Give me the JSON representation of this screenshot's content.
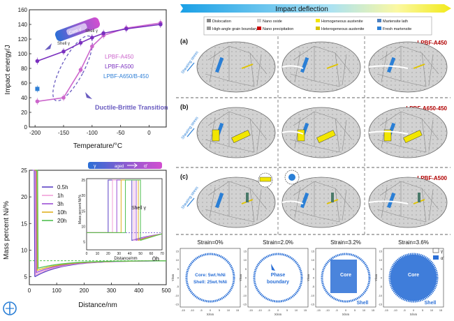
{
  "chart_data": [
    {
      "type": "line",
      "xlabel": "Temperature/°C",
      "ylabel": "Impact energy/J",
      "xlim": [
        -210,
        30
      ],
      "ylim": [
        0,
        160
      ],
      "xticks": [
        "-200",
        "-150",
        "-100",
        "-50",
        "0"
      ],
      "yticks": [
        "0",
        "20",
        "40",
        "60",
        "80",
        "100",
        "120",
        "140",
        "160"
      ],
      "series": [
        {
          "name": "LPBF-A450",
          "color": "#cc66cc",
          "x": [
            -196,
            -150,
            -120,
            -100,
            -80,
            -40,
            20
          ],
          "y": [
            35,
            40,
            78,
            110,
            125,
            135,
            142
          ]
        },
        {
          "name": "LPBF-A500",
          "color": "#7a2fbf",
          "x": [
            -196,
            -150,
            -120,
            -100,
            -80,
            -40,
            20
          ],
          "y": [
            90,
            103,
            115,
            122,
            128,
            134,
            140
          ]
        },
        {
          "name": "LPBF-A650/B-450",
          "color": "#2f7fd6",
          "x": [
            -196
          ],
          "y": [
            52
          ]
        }
      ],
      "annotations": [
        "Ductile-Brittle Transition",
        "Shell γ",
        "Shell γ",
        "Core γ'"
      ]
    },
    {
      "type": "line",
      "xlabel": "Distance/nm",
      "ylabel": "Mass percent Ni/%",
      "xlim": [
        0,
        500
      ],
      "ylim": [
        3.5,
        25
      ],
      "xticks": [
        "0",
        "100",
        "200",
        "300",
        "400",
        "500"
      ],
      "yticks": [
        "5",
        "10",
        "15",
        "20",
        "25"
      ],
      "series": [
        {
          "name": "0.5h",
          "color": "#5a3fc4"
        },
        {
          "name": "1h",
          "color": "#f2a0d8"
        },
        {
          "name": "3h",
          "color": "#9c4fd6"
        },
        {
          "name": "10h",
          "color": "#e0b020"
        },
        {
          "name": "20h",
          "color": "#50c050"
        }
      ],
      "annotations": [
        "0h"
      ],
      "inset": {
        "xlabel": "Distance/nm",
        "ylabel": "Mass percent Ni/%",
        "xticks": [
          "0",
          "10",
          "20",
          "30",
          "40",
          "50",
          "60",
          "70"
        ],
        "yticks": [
          "5",
          "10",
          "15",
          "20",
          "25"
        ],
        "annotation": "Shell γ"
      }
    },
    {
      "type": "scatter",
      "panels": [
        {
          "strain": "Strain=0%",
          "label1": "Core: 5wt.%Ni",
          "label2": "Shell: 25wt.%Ni"
        },
        {
          "strain": "Strain=2.0%",
          "label1": "Phase",
          "label2": "boundary"
        },
        {
          "strain": "Strain=3.2%",
          "label1": "Core",
          "label2": "Shell"
        },
        {
          "strain": "Strain=3.6%",
          "label1": "Core",
          "label2": "Shell"
        }
      ],
      "xlabel": "X/nm",
      "ylabel": "Y/nm",
      "ticks": [
        "-15",
        "-10",
        "-5",
        "0",
        "5",
        "10",
        "15"
      ],
      "legend": [
        "γ",
        "α'"
      ]
    }
  ],
  "gradient_bar": {
    "labels": [
      "γ",
      "aged",
      "α'"
    ]
  },
  "banner": {
    "title": "Impact deflection"
  },
  "legend_items": [
    {
      "label": "Dislocation",
      "color": "#888888"
    },
    {
      "label": "Nano oxide",
      "color": "#cccccc"
    },
    {
      "label": "Homogeneous austenite",
      "color": "#f3e500"
    },
    {
      "label": "Martensite lath",
      "color": "#4a7fc0"
    },
    {
      "label": "High-angle grain boundary",
      "color": "#999999"
    },
    {
      "label": "Nano precipitation",
      "color": "#cc0000"
    },
    {
      "label": "Heterogeneous austenite",
      "color": "#d7c200"
    },
    {
      "label": "Fresh martensite",
      "color": "#2a7fd6"
    }
  ],
  "rows": [
    {
      "label": "(a)",
      "name": "LPBF-A450"
    },
    {
      "label": "(b)",
      "name": "LPBF-A650-450"
    },
    {
      "label": "(c)",
      "name": "LPBF-A500"
    }
  ],
  "shearing": "Shearing stress",
  "colors": {
    "purple": "#8a3cc8",
    "blue": "#2a7fd6",
    "yellow": "#f2e600",
    "darkred": "#b00000",
    "grain": "#c4c4c4"
  }
}
